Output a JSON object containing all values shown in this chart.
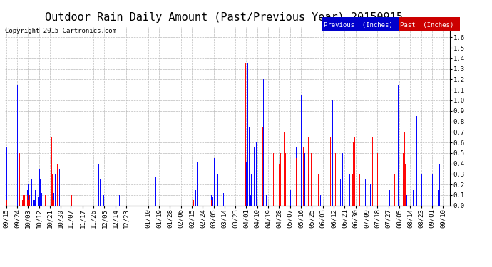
{
  "title": "Outdoor Rain Daily Amount (Past/Previous Year) 20150915",
  "copyright": "Copyright 2015 Cartronics.com",
  "legend_previous": "Previous  (Inches)",
  "legend_past": "Past  (Inches)",
  "ylim": [
    0.0,
    1.7
  ],
  "yticks": [
    0.0,
    0.1,
    0.2,
    0.3,
    0.4,
    0.5,
    0.6,
    0.7,
    0.8,
    0.9,
    1.0,
    1.1,
    1.2,
    1.3,
    1.4,
    1.5,
    1.6
  ],
  "background_color": "#FFFFFF",
  "grid_color": "#BBBBBB",
  "title_fontsize": 11,
  "tick_fontsize": 6.5,
  "blue_color": "#0000FF",
  "black_color": "#000000",
  "red_color": "#FF0000",
  "blue_bg": "#0000CC",
  "red_bg": "#CC0000",
  "blue_rain": [
    0.55,
    0.0,
    0.0,
    0.0,
    0.0,
    0.0,
    0.0,
    0.0,
    0.0,
    1.15,
    0.05,
    0.1,
    0.05,
    0.0,
    0.05,
    0.0,
    0.0,
    0.15,
    0.2,
    0.1,
    0.08,
    0.25,
    0.05,
    0.05,
    0.15,
    0.0,
    0.08,
    0.35,
    0.25,
    0.12,
    0.05,
    0.0,
    0.05,
    0.0,
    0.0,
    0.0,
    0.0,
    0.0,
    0.08,
    0.12,
    0.3,
    0.35,
    0.0,
    0.0,
    0.35,
    0.0,
    0.0,
    0.0,
    0.0,
    0.0,
    0.0,
    0.0,
    0.0,
    0.3,
    0.05,
    0.0,
    0.0,
    0.0,
    0.0,
    0.0,
    0.0,
    0.0,
    0.0,
    0.0,
    0.0,
    0.0,
    0.0,
    0.0,
    0.0,
    0.0,
    0.0,
    0.0,
    0.0,
    0.0,
    0.0,
    0.0,
    0.4,
    0.25,
    0.0,
    0.0,
    0.1,
    0.0,
    0.0,
    0.0,
    0.0,
    0.0,
    0.0,
    0.0,
    0.4,
    0.0,
    0.0,
    0.0,
    0.3,
    0.1,
    0.0,
    0.0,
    0.0,
    0.0,
    0.0,
    0.0,
    0.0,
    0.0,
    0.0,
    0.0,
    0.0,
    0.0,
    0.0,
    0.0,
    0.0,
    0.0,
    0.0,
    0.0,
    0.0,
    0.0,
    0.0,
    0.0,
    0.0,
    0.0,
    0.0,
    0.0,
    0.0,
    0.0,
    0.0,
    0.27,
    0.0,
    0.0,
    0.0,
    0.0,
    0.0,
    0.0,
    0.0,
    0.0,
    0.0,
    0.0,
    0.0,
    0.08,
    0.0,
    0.0,
    0.0,
    0.0,
    0.0,
    0.0,
    0.0,
    0.0,
    0.0,
    0.0,
    0.0,
    0.0,
    0.0,
    0.0,
    0.0,
    0.0,
    0.0,
    0.0,
    0.0,
    0.0,
    0.15,
    0.42,
    0.0,
    0.0,
    0.0,
    0.0,
    0.0,
    0.0,
    0.0,
    0.0,
    0.0,
    0.0,
    0.0,
    0.1,
    0.08,
    0.45,
    0.0,
    0.0,
    0.3,
    0.0,
    0.0,
    0.0,
    0.0,
    0.12,
    0.0,
    0.0,
    0.0,
    0.0,
    0.0,
    0.0,
    0.0,
    0.0,
    0.0,
    0.0,
    0.0,
    0.0,
    0.0,
    0.0,
    0.0,
    0.0,
    0.0,
    0.55,
    0.41,
    1.35,
    0.75,
    0.1,
    0.3,
    0.0,
    0.55,
    0.0,
    0.6,
    0.0,
    0.0,
    0.0,
    0.0,
    0.0,
    1.2,
    0.0,
    0.1,
    0.0,
    0.0,
    0.0,
    0.0,
    0.0,
    0.0,
    0.0,
    0.0,
    0.0,
    0.0,
    0.0,
    0.0,
    0.0,
    0.0,
    0.0,
    0.1,
    0.05,
    0.0,
    0.25,
    0.15,
    0.0,
    0.0,
    0.0,
    0.0,
    0.55,
    0.0,
    0.0,
    0.0,
    1.05,
    0.0,
    0.12,
    0.5,
    0.0,
    0.0,
    0.3,
    0.0,
    0.15,
    0.5,
    0.0,
    0.0,
    0.0,
    0.0,
    0.05,
    0.0,
    0.1,
    0.0,
    0.0,
    0.0,
    0.0,
    0.0,
    0.0,
    0.5,
    0.0,
    0.05,
    1.0,
    0.0,
    0.0,
    0.0,
    0.0,
    0.0,
    0.25,
    0.0,
    0.5,
    0.0,
    0.0,
    0.0,
    0.0,
    0.0,
    0.3,
    0.0,
    0.0,
    0.0,
    0.0,
    0.0,
    0.0,
    0.0,
    0.0,
    0.0,
    0.0,
    0.0,
    0.0,
    0.25,
    0.0,
    0.0,
    0.0,
    0.2,
    0.0,
    0.0,
    0.0,
    0.0,
    0.0,
    0.0,
    0.0,
    0.0,
    0.0,
    0.0,
    0.0,
    0.0,
    0.0,
    0.0,
    0.0,
    0.15,
    0.0,
    0.0,
    0.0,
    0.0,
    0.0,
    0.0,
    1.15,
    0.0,
    0.0,
    0.0,
    0.25,
    0.0,
    0.0,
    0.1,
    0.0,
    0.0,
    0.0,
    0.0,
    0.15,
    0.3,
    0.0,
    0.85,
    0.0,
    0.0,
    0.0,
    0.3,
    0.0,
    0.0,
    0.0,
    0.0,
    0.0,
    0.1,
    0.0,
    0.0,
    0.3,
    0.0,
    0.0,
    0.0,
    0.0,
    0.15,
    0.4,
    0.0,
    0.0,
    0.0
  ],
  "red_rain": [
    0.05,
    0.0,
    0.0,
    0.0,
    0.0,
    0.0,
    0.0,
    0.0,
    0.0,
    0.0,
    1.2,
    0.5,
    0.05,
    0.05,
    0.1,
    0.1,
    0.0,
    0.1,
    0.05,
    0.1,
    0.05,
    0.0,
    0.0,
    0.0,
    0.0,
    0.0,
    0.0,
    0.0,
    0.0,
    0.0,
    0.0,
    0.0,
    0.1,
    0.0,
    0.0,
    0.0,
    0.0,
    0.65,
    0.3,
    0.05,
    0.0,
    0.0,
    0.4,
    0.0,
    0.0,
    0.0,
    0.0,
    0.0,
    0.0,
    0.0,
    0.0,
    0.0,
    0.0,
    0.65,
    0.1,
    0.0,
    0.0,
    0.0,
    0.0,
    0.0,
    0.0,
    0.0,
    0.0,
    0.0,
    0.0,
    0.0,
    0.0,
    0.0,
    0.0,
    0.0,
    0.0,
    0.0,
    0.0,
    0.0,
    0.0,
    0.0,
    0.0,
    0.0,
    0.0,
    0.0,
    0.0,
    0.0,
    0.0,
    0.0,
    0.0,
    0.0,
    0.0,
    0.0,
    0.0,
    0.0,
    0.0,
    0.0,
    0.0,
    0.0,
    0.0,
    0.0,
    0.0,
    0.0,
    0.0,
    0.0,
    0.0,
    0.0,
    0.0,
    0.0,
    0.05,
    0.0,
    0.0,
    0.0,
    0.0,
    0.0,
    0.0,
    0.0,
    0.0,
    0.0,
    0.0,
    0.0,
    0.0,
    0.0,
    0.0,
    0.0,
    0.0,
    0.0,
    0.0,
    0.0,
    0.0,
    0.0,
    0.0,
    0.0,
    0.0,
    0.0,
    0.0,
    0.0,
    0.0,
    0.0,
    0.0,
    0.0,
    0.0,
    0.0,
    0.0,
    0.0,
    0.0,
    0.0,
    0.0,
    0.0,
    0.0,
    0.0,
    0.0,
    0.0,
    0.0,
    0.0,
    0.0,
    0.0,
    0.0,
    0.0,
    0.05,
    0.0,
    0.0,
    0.0,
    0.0,
    0.0,
    0.0,
    0.0,
    0.0,
    0.0,
    0.0,
    0.0,
    0.0,
    0.0,
    0.0,
    0.05,
    0.0,
    0.0,
    0.0,
    0.0,
    0.0,
    0.0,
    0.0,
    0.0,
    0.0,
    0.0,
    0.0,
    0.0,
    0.0,
    0.0,
    0.0,
    0.0,
    0.0,
    0.0,
    0.0,
    0.0,
    0.0,
    0.0,
    0.0,
    0.0,
    0.0,
    0.0,
    0.0,
    1.35,
    0.0,
    0.0,
    0.0,
    0.0,
    0.0,
    0.0,
    0.0,
    0.0,
    0.0,
    0.0,
    0.0,
    0.0,
    0.0,
    0.75,
    0.0,
    0.0,
    0.0,
    0.0,
    0.0,
    0.0,
    0.0,
    0.0,
    0.5,
    0.0,
    0.0,
    0.0,
    0.0,
    0.4,
    0.5,
    0.6,
    0.0,
    0.7,
    0.5,
    0.0,
    0.0,
    0.0,
    0.0,
    0.0,
    0.0,
    0.0,
    0.0,
    0.45,
    0.0,
    0.0,
    0.0,
    0.0,
    0.0,
    0.55,
    0.0,
    0.0,
    0.0,
    0.65,
    0.0,
    0.5,
    0.0,
    0.0,
    0.0,
    0.0,
    0.0,
    0.3,
    0.0,
    0.0,
    0.0,
    0.0,
    0.0,
    0.0,
    0.0,
    0.0,
    0.0,
    0.65,
    0.0,
    0.0,
    0.0,
    0.5,
    0.0,
    0.0,
    0.0,
    0.0,
    0.0,
    0.0,
    0.0,
    0.0,
    0.0,
    0.0,
    0.0,
    0.0,
    0.0,
    0.3,
    0.6,
    0.65,
    0.0,
    0.0,
    0.0,
    0.3,
    0.0,
    0.0,
    0.0,
    0.0,
    0.0,
    0.0,
    0.0,
    0.0,
    0.0,
    0.0,
    0.65,
    0.0,
    0.0,
    0.0,
    0.5,
    0.0,
    0.0,
    0.0,
    0.0,
    0.0,
    0.0,
    0.0,
    0.0,
    0.0,
    0.0,
    0.0,
    0.0,
    0.0,
    0.3,
    0.0,
    0.0,
    0.0,
    0.0,
    0.95,
    0.0,
    0.5,
    0.7,
    0.4,
    0.0,
    0.0,
    0.0,
    0.0
  ],
  "black_rain": [
    0.0,
    0.0,
    0.0,
    0.0,
    0.0,
    0.0,
    0.0,
    0.0,
    0.0,
    0.0,
    0.0,
    0.0,
    0.0,
    0.0,
    0.0,
    0.0,
    0.0,
    0.0,
    0.0,
    0.0,
    0.0,
    0.0,
    0.0,
    0.0,
    0.0,
    0.0,
    0.0,
    0.0,
    0.0,
    0.0,
    0.0,
    0.0,
    0.0,
    0.0,
    0.0,
    0.0,
    0.0,
    0.0,
    0.0,
    0.0,
    0.0,
    0.0,
    0.0,
    0.0,
    0.0,
    0.0,
    0.0,
    0.0,
    0.0,
    0.0,
    0.0,
    0.0,
    0.0,
    0.0,
    0.0,
    0.0,
    0.0,
    0.0,
    0.0,
    0.0,
    0.0,
    0.0,
    0.0,
    0.0,
    0.0,
    0.0,
    0.0,
    0.0,
    0.0,
    0.0,
    0.0,
    0.0,
    0.0,
    0.0,
    0.0,
    0.0,
    0.0,
    0.0,
    0.0,
    0.0,
    0.0,
    0.0,
    0.0,
    0.0,
    0.0,
    0.0,
    0.0,
    0.0,
    0.0,
    0.0,
    0.0,
    0.0,
    0.0,
    0.0,
    0.0,
    0.0,
    0.0,
    0.0,
    0.0,
    0.0,
    0.0,
    0.0,
    0.0,
    0.0,
    0.0,
    0.0,
    0.0,
    0.0,
    0.0,
    0.0,
    0.0,
    0.0,
    0.0,
    0.0,
    0.0,
    0.0,
    0.0,
    0.0,
    0.0,
    0.0,
    0.0,
    0.0,
    0.0,
    0.0,
    0.0,
    0.0,
    0.0,
    0.0,
    0.0,
    0.0,
    0.0,
    0.0,
    0.0,
    0.0,
    0.0,
    0.45,
    0.0,
    0.0,
    0.0,
    0.0,
    0.0,
    0.0,
    0.0,
    0.0,
    0.0,
    0.0,
    0.0,
    0.0,
    0.0,
    0.0,
    0.0,
    0.0,
    0.0,
    0.0,
    0.0,
    0.0,
    0.0,
    0.0,
    0.0,
    0.0,
    0.0,
    0.0,
    0.0,
    0.0,
    0.0,
    0.0,
    0.0,
    0.0,
    0.0,
    0.0,
    0.0,
    0.0,
    0.0,
    0.0,
    0.0,
    0.0,
    0.0,
    0.0,
    0.0,
    0.0,
    0.0,
    0.0,
    0.0,
    0.0,
    0.0,
    0.0,
    0.0,
    0.0,
    0.0,
    0.0,
    0.0,
    0.0,
    0.0,
    0.0,
    0.0,
    0.0,
    0.0,
    0.0,
    0.0,
    0.0,
    0.0,
    0.0,
    0.0,
    0.0,
    0.0,
    0.0,
    0.0,
    0.0,
    0.0,
    0.0,
    0.0,
    0.0,
    0.0,
    0.0,
    0.0,
    0.0,
    0.0,
    0.0,
    0.0,
    0.0,
    0.0,
    0.0,
    0.0,
    0.0,
    0.0,
    0.0,
    0.0,
    0.0,
    0.0,
    0.0,
    0.0,
    0.0,
    0.0,
    0.0,
    0.0,
    0.0,
    0.0,
    0.0,
    0.0,
    0.0,
    0.0,
    0.0,
    0.0,
    0.0,
    0.0,
    0.0,
    0.0,
    0.0,
    0.0,
    0.0,
    0.0,
    0.0,
    0.0,
    0.0,
    0.0,
    0.0,
    0.0,
    0.0,
    0.0,
    0.0,
    0.0,
    0.0,
    0.0,
    0.0,
    0.0,
    0.0,
    0.0,
    0.0,
    0.0,
    0.0,
    0.0,
    0.0,
    0.0,
    0.0,
    0.0,
    0.0,
    0.0,
    0.0,
    0.0,
    0.0,
    0.0,
    0.0,
    0.0,
    0.0,
    0.0,
    0.0,
    0.0,
    0.0,
    0.0,
    0.0,
    0.0,
    0.0,
    0.0,
    0.0,
    0.0,
    0.0,
    0.0,
    0.0,
    0.0,
    0.0,
    0.0,
    0.0,
    0.0,
    0.0,
    0.0,
    0.0,
    0.0,
    0.0,
    0.0,
    0.0,
    0.0,
    0.0,
    0.0,
    0.0,
    0.0,
    0.0,
    0.0,
    0.0,
    0.0,
    0.0,
    0.0,
    0.0,
    0.0,
    0.0,
    0.0,
    0.0,
    0.0,
    0.0,
    0.0,
    0.0,
    0.0,
    0.0,
    0.0,
    0.0,
    0.0,
    0.0,
    0.0,
    0.0,
    0.0,
    0.0,
    0.0,
    0.0,
    0.0,
    0.0,
    0.0,
    0.0,
    0.0,
    0.0,
    0.0,
    0.0,
    0.0,
    0.0,
    0.0,
    0.0,
    0.0,
    0.0,
    0.0,
    0.0,
    0.0,
    0.0,
    0.0,
    0.0,
    0.0,
    0.0,
    0.0,
    0.0,
    0.0,
    0.0,
    0.0,
    0.0,
    0.0,
    0.0,
    0.0,
    0.0,
    0.0,
    0.0
  ],
  "xtick_labels": [
    "09/15",
    "09/24",
    "10/03",
    "10/12",
    "10/21",
    "10/30",
    "11/07",
    "11/17",
    "11/26",
    "12/05",
    "12/14",
    "12/23",
    "01/10",
    "01/19",
    "01/28",
    "02/06",
    "02/15",
    "02/24",
    "03/05",
    "03/14",
    "03/23",
    "04/01",
    "04/10",
    "04/19",
    "04/28",
    "05/07",
    "05/16",
    "05/25",
    "06/03",
    "06/12",
    "06/21",
    "06/30",
    "07/09",
    "07/18",
    "07/27",
    "08/05",
    "08/14",
    "08/23",
    "09/01",
    "09/10"
  ]
}
